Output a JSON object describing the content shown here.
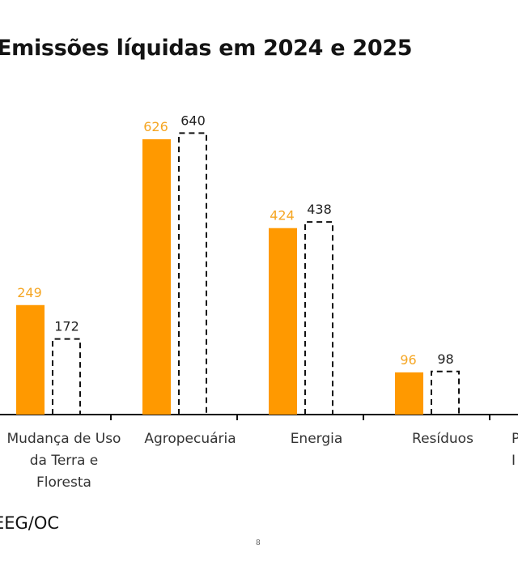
{
  "chart_data": {
    "type": "bar",
    "title": "Emissões líquidas em 2024 e 2025",
    "xlabel": "",
    "ylabel": "",
    "ylim": [
      0,
      700
    ],
    "grid": false,
    "categories": [
      [
        "Mudança de Uso",
        "da Terra e",
        "Floresta"
      ],
      [
        "Agropecuária"
      ],
      [
        "Energia"
      ],
      [
        "Resíduos"
      ],
      [
        "P",
        "I"
      ]
    ],
    "series": [
      {
        "name": "2024",
        "style": "solid",
        "color": "#FF9900",
        "label_color": "#F5A623",
        "values": [
          249,
          626,
          424,
          96,
          null
        ]
      },
      {
        "name": "2025",
        "style": "dashed",
        "color": "#111111",
        "label_color": "#222222",
        "values": [
          172,
          640,
          438,
          98,
          null
        ]
      }
    ]
  },
  "source": "EEG/OC",
  "page_number": "8"
}
